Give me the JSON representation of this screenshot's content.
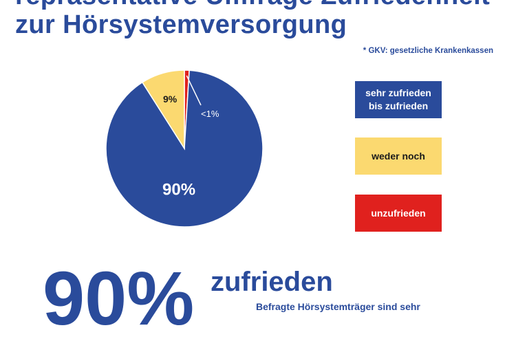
{
  "header": {
    "title_partial": "repräsentative Umfrage Zufriedenheit",
    "title_line2": "zur Hörsystemversorgung",
    "footnote": "* GKV: gesetzliche Krankenkassen"
  },
  "colors": {
    "blue": "#2a4b9b",
    "yellow": "#fbd970",
    "red": "#e0211e"
  },
  "chart_data": {
    "type": "pie",
    "title": "",
    "slices": [
      {
        "label": "sehr zufrieden bis zufrieden",
        "value": 90,
        "display": "90%",
        "color": "#2a4b9b"
      },
      {
        "label": "weder noch",
        "value": 9,
        "display": "9%",
        "color": "#fbd970"
      },
      {
        "label": "unzufrieden",
        "value": 1,
        "display": "<1%",
        "color": "#e0211e"
      }
    ],
    "legend": [
      {
        "lines": [
          "sehr zufrieden",
          "bis zufrieden"
        ],
        "color": "#2a4b9b"
      },
      {
        "lines": [
          "weder noch"
        ],
        "color": "#fbd970"
      },
      {
        "lines": [
          "unzufrieden"
        ],
        "color": "#e0211e"
      }
    ],
    "legend_position": "right"
  },
  "summary": {
    "big_number": "90%",
    "big_label": "zufrieden",
    "subtext": "Befragte Hörsystemträger sind sehr"
  }
}
